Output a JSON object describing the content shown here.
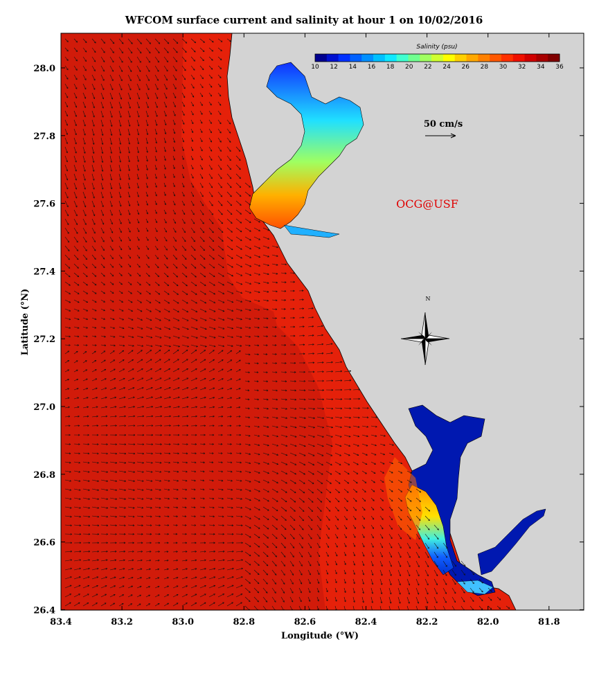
{
  "title": "WFCOM surface current and salinity at hour 1 on 10/02/2016",
  "x_axis": {
    "label": "Longitude (°W)",
    "ticks": [
      "83.4",
      "83.2",
      "83.0",
      "82.8",
      "82.6",
      "82.4",
      "82.2",
      "82.0",
      "81.8"
    ]
  },
  "y_axis": {
    "label": "Latitude (°N)",
    "ticks": [
      "28.0",
      "27.8",
      "27.6",
      "27.4",
      "27.2",
      "27.0",
      "26.8",
      "26.6",
      "26.4"
    ]
  },
  "colorbar": {
    "title": "Salinity (psu)",
    "ticks": [
      "10",
      "12",
      "14",
      "16",
      "18",
      "20",
      "22",
      "24",
      "26",
      "28",
      "30",
      "32",
      "34",
      "36"
    ],
    "min": 10,
    "max": 36
  },
  "scale_label": "50 cm/s",
  "credit": "OCG@USF",
  "compass_label": "N",
  "colors": {
    "ocean": "#e5210a",
    "land": "#d3d3d3",
    "credit": "#e00000"
  }
}
